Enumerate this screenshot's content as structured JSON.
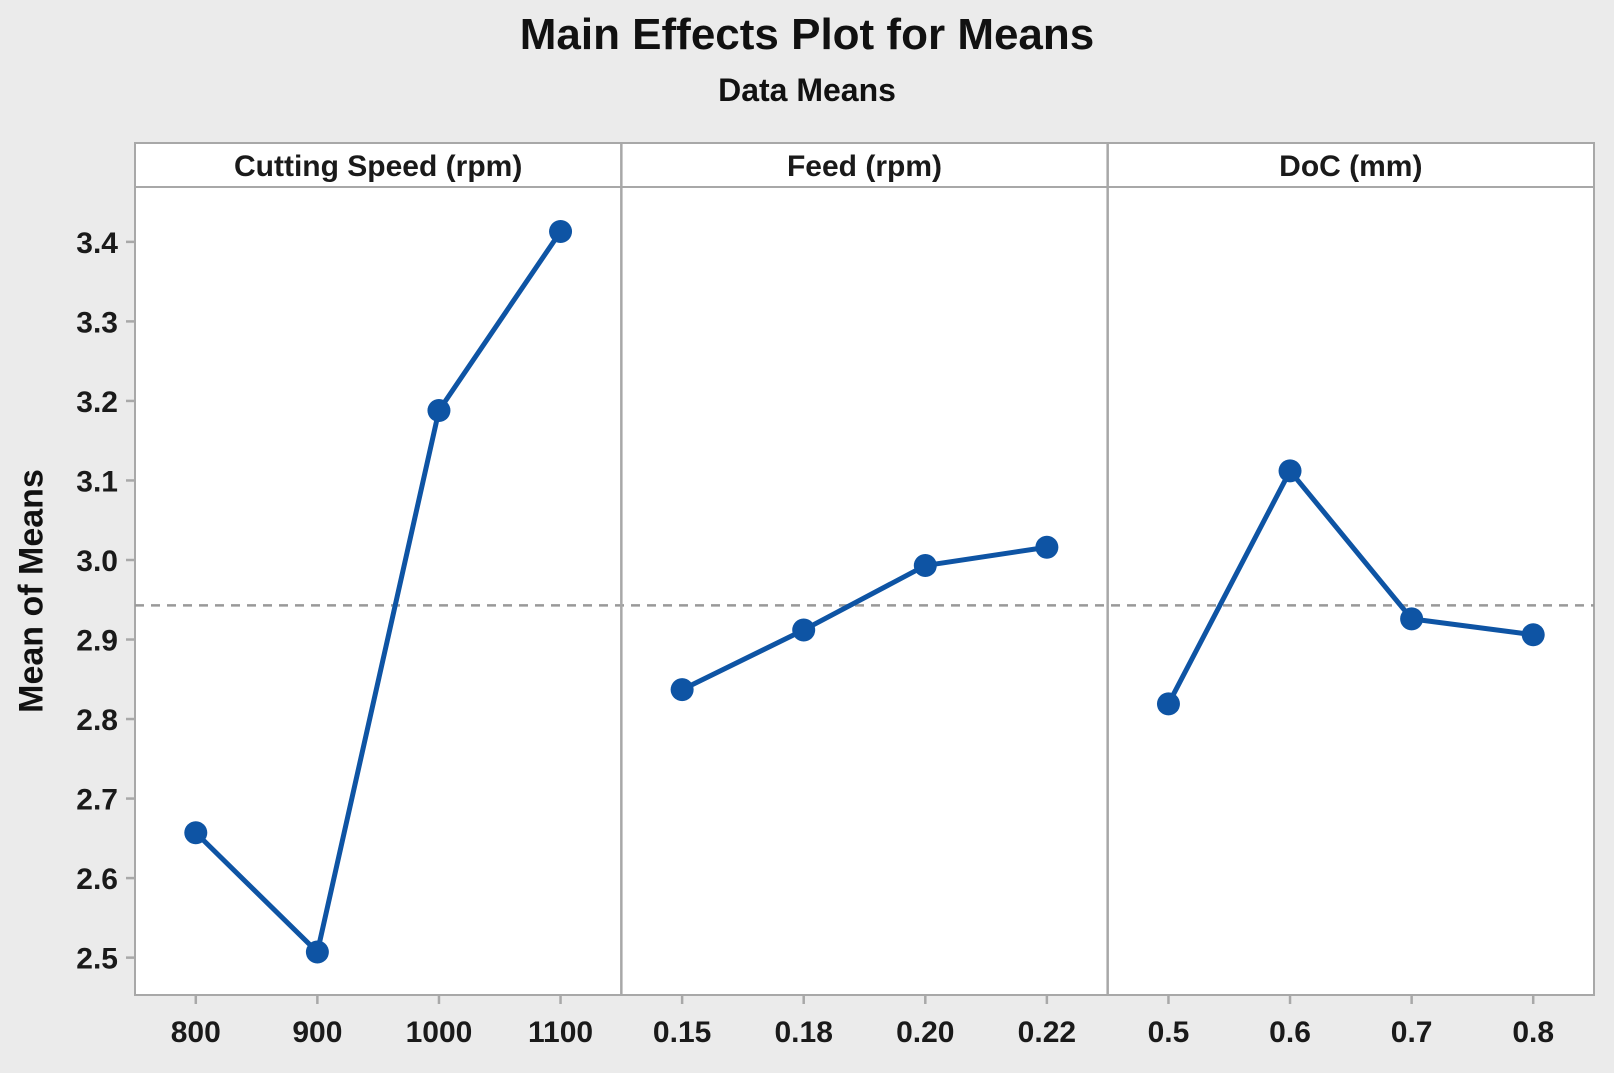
{
  "page": {
    "background": "#ebebeb"
  },
  "chart_data": {
    "type": "line",
    "title": "Main Effects Plot for Means",
    "subtitle": "Data Means",
    "ylabel": "Mean of Means",
    "xlabel": "",
    "ylim": [
      2.453,
      3.469
    ],
    "yticks": [
      "2.5",
      "2.6",
      "2.7",
      "2.8",
      "2.9",
      "3.0",
      "3.1",
      "3.2",
      "3.3",
      "3.4"
    ],
    "grand_mean": 2.943,
    "grand_mean_line_style": "dashed",
    "legend": "none",
    "grid": false,
    "panels": [
      {
        "label": "Cutting Speed (rpm)",
        "categories": [
          "800",
          "900",
          "1000",
          "1100"
        ],
        "values": [
          2.657,
          2.507,
          3.188,
          3.413
        ]
      },
      {
        "label": "Feed (rpm)",
        "categories": [
          "0.15",
          "0.18",
          "0.20",
          "0.22"
        ],
        "values": [
          2.837,
          2.912,
          2.993,
          3.016
        ]
      },
      {
        "label": "DoC (mm)",
        "categories": [
          "0.5",
          "0.6",
          "0.7",
          "0.8"
        ],
        "values": [
          2.819,
          3.112,
          2.926,
          2.906
        ]
      }
    ],
    "colors": {
      "series": "#0e54a4",
      "grand_mean_line": "#999999",
      "frame": "#a8a8a8",
      "plot_background": "#ffffff",
      "text": "#1a1a1a"
    }
  }
}
